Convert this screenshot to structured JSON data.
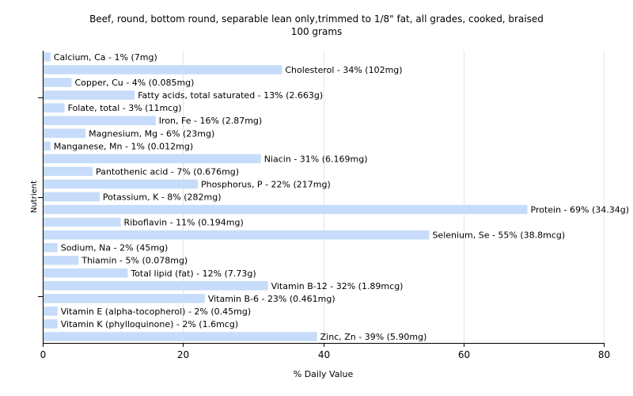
{
  "chart_data": {
    "type": "bar",
    "orientation": "horizontal",
    "title": "Beef, round, bottom round, separable lean only,trimmed to 1/8\" fat, all grades, cooked, braised",
    "subtitle": "100 grams",
    "xlabel": "% Daily Value",
    "ylabel": "Nutrient",
    "xlim": [
      0,
      80
    ],
    "xticks": [
      0,
      20,
      40,
      60,
      80
    ],
    "grid": true,
    "bar_color": "#c6dcfa",
    "categories": [
      "Calcium, Ca",
      "Cholesterol",
      "Copper, Cu",
      "Fatty acids, total saturated",
      "Folate, total",
      "Iron, Fe",
      "Magnesium, Mg",
      "Manganese, Mn",
      "Niacin",
      "Pantothenic acid",
      "Phosphorus, P",
      "Potassium, K",
      "Protein",
      "Riboflavin",
      "Selenium, Se",
      "Sodium, Na",
      "Thiamin",
      "Total lipid (fat)",
      "Vitamin B-12",
      "Vitamin B-6",
      "Vitamin E (alpha-tocopherol)",
      "Vitamin K (phylloquinone)",
      "Zinc, Zn"
    ],
    "values": [
      1,
      34,
      4,
      13,
      3,
      16,
      6,
      1,
      31,
      7,
      22,
      8,
      69,
      11,
      55,
      2,
      5,
      12,
      32,
      23,
      2,
      2,
      39
    ],
    "labels": [
      "Calcium, Ca - 1% (7mg)",
      "Cholesterol - 34% (102mg)",
      "Copper, Cu - 4% (0.085mg)",
      "Fatty acids, total saturated - 13% (2.663g)",
      "Folate, total - 3% (11mcg)",
      "Iron, Fe - 16% (2.87mg)",
      "Magnesium, Mg - 6% (23mg)",
      "Manganese, Mn - 1% (0.012mg)",
      "Niacin - 31% (6.169mg)",
      "Pantothenic acid - 7% (0.676mg)",
      "Phosphorus, P - 22% (217mg)",
      "Potassium, K - 8% (282mg)",
      "Protein - 69% (34.34g)",
      "Riboflavin - 11% (0.194mg)",
      "Selenium, Se - 55% (38.8mcg)",
      "Sodium, Na - 2% (45mg)",
      "Thiamin - 5% (0.078mg)",
      "Total lipid (fat) - 12% (7.73g)",
      "Vitamin B-12 - 32% (1.89mcg)",
      "Vitamin B-6 - 23% (0.461mg)",
      "Vitamin E (alpha-tocopherol) - 2% (0.45mg)",
      "Vitamin K (phylloquinone) - 2% (1.6mcg)",
      "Zinc, Zn - 39% (5.90mg)"
    ]
  }
}
